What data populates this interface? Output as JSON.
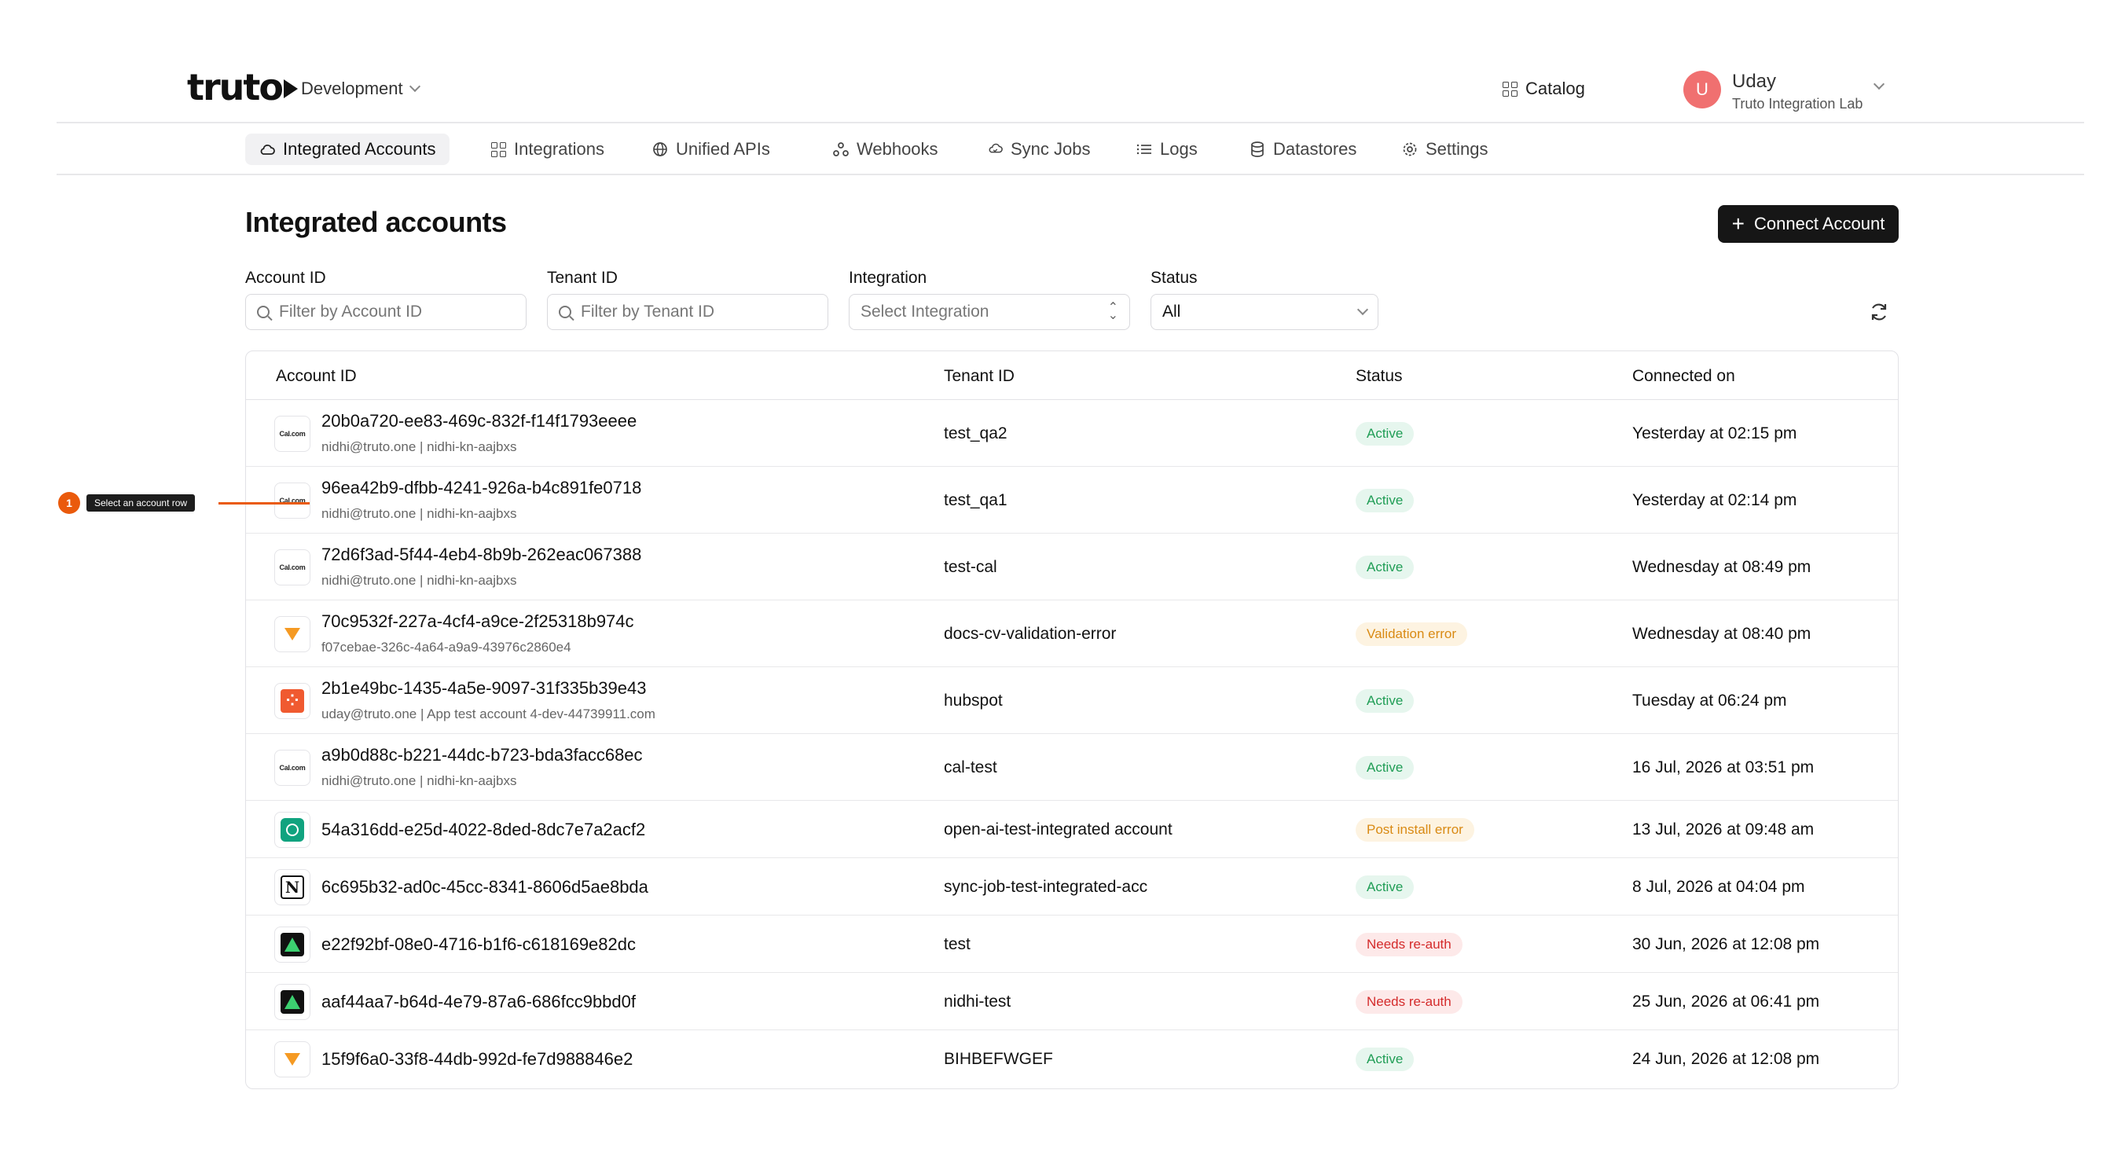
{
  "brand": "truto",
  "environment": "Development",
  "header": {
    "catalog_label": "Catalog",
    "user_initial": "U",
    "user_name": "Uday",
    "user_org": "Truto Integration Lab"
  },
  "nav": [
    {
      "label": "Integrated Accounts",
      "icon": "cloud-icon",
      "active": true
    },
    {
      "label": "Integrations",
      "icon": "grid-icon"
    },
    {
      "label": "Unified APIs",
      "icon": "globe-icon"
    },
    {
      "label": "Webhooks",
      "icon": "webhook-icon"
    },
    {
      "label": "Sync Jobs",
      "icon": "sync-icon"
    },
    {
      "label": "Logs",
      "icon": "list-icon"
    },
    {
      "label": "Datastores",
      "icon": "database-icon"
    },
    {
      "label": "Settings",
      "icon": "gear-icon"
    }
  ],
  "page": {
    "title": "Integrated accounts",
    "connect_label": "Connect Account"
  },
  "filters": {
    "account_label": "Account ID",
    "account_placeholder": "Filter by Account ID",
    "tenant_label": "Tenant ID",
    "tenant_placeholder": "Filter by Tenant ID",
    "integration_label": "Integration",
    "integration_placeholder": "Select Integration",
    "status_label": "Status",
    "status_value": "All"
  },
  "table": {
    "columns": [
      "Account ID",
      "Tenant ID",
      "Status",
      "Connected on"
    ],
    "rows": [
      {
        "id": "20b0a720-ee83-469c-832f-f14f1793eeee",
        "sub": "nidhi@truto.one | nidhi-kn-aajbxs",
        "tenant": "test_qa2",
        "status": "Active",
        "status_kind": "ok",
        "connected": "Yesterday at 02:15 pm",
        "logo": "calcom",
        "logo_text": "Cal.com"
      },
      {
        "id": "96ea42b9-dfbb-4241-926a-b4c891fe0718",
        "sub": "nidhi@truto.one | nidhi-kn-aajbxs",
        "tenant": "test_qa1",
        "status": "Active",
        "status_kind": "ok",
        "connected": "Yesterday at 02:14 pm",
        "logo": "calcom",
        "logo_text": "Cal.com"
      },
      {
        "id": "72d6f3ad-5f44-4eb4-8b9b-262eac067388",
        "sub": "nidhi@truto.one | nidhi-kn-aajbxs",
        "tenant": "test-cal",
        "status": "Active",
        "status_kind": "ok",
        "connected": "Wednesday at 08:49 pm",
        "logo": "calcom",
        "logo_text": "Cal.com"
      },
      {
        "id": "70c9532f-227a-4cf4-a9ce-2f25318b974c",
        "sub": "f07cebae-326c-4a64-a9a9-43976c2860e4",
        "tenant": "docs-cv-validation-error",
        "status": "Validation error",
        "status_kind": "warn",
        "connected": "Wednesday at 08:40 pm",
        "logo": "vero"
      },
      {
        "id": "2b1e49bc-1435-4a5e-9097-31f335b39e43",
        "sub": "uday@truto.one | App test account 4-dev-44739911.com",
        "tenant": "hubspot",
        "status": "Active",
        "status_kind": "ok",
        "connected": "Tuesday at 06:24 pm",
        "logo": "hubspot"
      },
      {
        "id": "a9b0d88c-b221-44dc-b723-bda3facc68ec",
        "sub": "nidhi@truto.one | nidhi-kn-aajbxs",
        "tenant": "cal-test",
        "status": "Active",
        "status_kind": "ok",
        "connected": "16 Jul, 2026 at 03:51 pm",
        "logo": "calcom",
        "logo_text": "Cal.com"
      },
      {
        "id": "54a316dd-e25d-4022-8ded-8dc7e7a2acf2",
        "sub": "",
        "tenant": "open-ai-test-integrated account",
        "status": "Post install error",
        "status_kind": "warn",
        "connected": "13 Jul, 2026 at 09:48 am",
        "logo": "openai"
      },
      {
        "id": "6c695b32-ad0c-45cc-8341-8606d5ae8bda",
        "sub": "",
        "tenant": "sync-job-test-integrated-acc",
        "status": "Active",
        "status_kind": "ok",
        "connected": "8 Jul, 2026 at 04:04 pm",
        "logo": "notion",
        "logo_text": "N"
      },
      {
        "id": "e22f92bf-08e0-4716-b1f6-c618169e82dc",
        "sub": "",
        "tenant": "test",
        "status": "Needs re-auth",
        "status_kind": "err",
        "connected": "30 Jun, 2026 at 12:08 pm",
        "logo": "green"
      },
      {
        "id": "aaf44aa7-b64d-4e79-87a6-686fcc9bbd0f",
        "sub": "",
        "tenant": "nidhi-test",
        "status": "Needs re-auth",
        "status_kind": "err",
        "connected": "25 Jun, 2026 at 06:41 pm",
        "logo": "green"
      },
      {
        "id": "15f9f6a0-33f8-44db-992d-fe7d988846e2",
        "sub": "",
        "tenant": "BIHBEFWGEF",
        "status": "Active",
        "status_kind": "ok",
        "connected": "24 Jun, 2026 at 12:08 pm",
        "logo": "vero"
      }
    ]
  },
  "annotation": {
    "number": "1",
    "label": "Select an account row",
    "color": "#ea5a0c"
  }
}
